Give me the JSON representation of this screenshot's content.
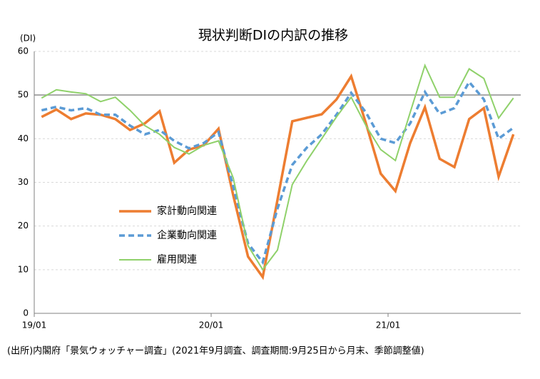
{
  "chart_data": {
    "type": "line",
    "title": "現状判断DIの内訳の推移",
    "y_label": "(DI)",
    "source": "(出所)内閣府「景気ウォッチャー調査」(2021年9月調査、調査期間:9月25日から月末、季節調整値)",
    "categories": [
      "19/01",
      null,
      null,
      null,
      null,
      null,
      null,
      null,
      null,
      null,
      null,
      null,
      "20/01",
      null,
      null,
      null,
      null,
      null,
      null,
      null,
      null,
      null,
      null,
      null,
      "21/01",
      null,
      null,
      null,
      null,
      null,
      null,
      null,
      null
    ],
    "series": [
      {
        "name": "家計動向関連",
        "color": "#ed7d31",
        "style": "solid",
        "values": [
          45,
          46.7,
          44.5,
          45.8,
          45.5,
          44.5,
          42,
          43.5,
          46.3,
          34.5,
          37.5,
          38.5,
          42.3,
          27,
          13,
          8.3,
          26,
          44,
          44.8,
          45.6,
          49,
          54.3,
          43.5,
          32,
          28,
          39,
          47.2,
          35.4,
          33.5,
          44.5,
          47,
          31.3,
          41
        ]
      },
      {
        "name": "企業動向関連",
        "color": "#5b9bd5",
        "style": "dashed",
        "values": [
          46.5,
          47.3,
          46.5,
          47,
          45.5,
          45.5,
          43,
          41,
          42,
          39.5,
          37.8,
          39,
          41.5,
          29,
          16,
          11.7,
          24,
          34,
          38,
          41,
          45.5,
          50.5,
          46,
          40,
          39,
          43.5,
          50.7,
          45.7,
          47,
          53,
          49,
          40,
          42.5
        ]
      },
      {
        "name": "雇用関連",
        "color": "#8fd16a",
        "style": "double",
        "values": [
          49.3,
          51.2,
          50.7,
          50.3,
          48.5,
          49.5,
          46.5,
          43,
          41,
          38,
          36.5,
          38.5,
          39.5,
          31,
          15.5,
          10,
          14.5,
          29.5,
          35,
          40,
          45,
          49.5,
          43,
          37.5,
          35,
          46,
          56.8,
          49.5,
          49.5,
          56,
          53.8,
          44.7,
          49.3
        ]
      }
    ],
    "ylim": [
      0,
      60
    ],
    "yticks": [
      0,
      10,
      20,
      30,
      40,
      50,
      60
    ],
    "grid": true,
    "reference_line": 50,
    "legend": "center-left"
  }
}
